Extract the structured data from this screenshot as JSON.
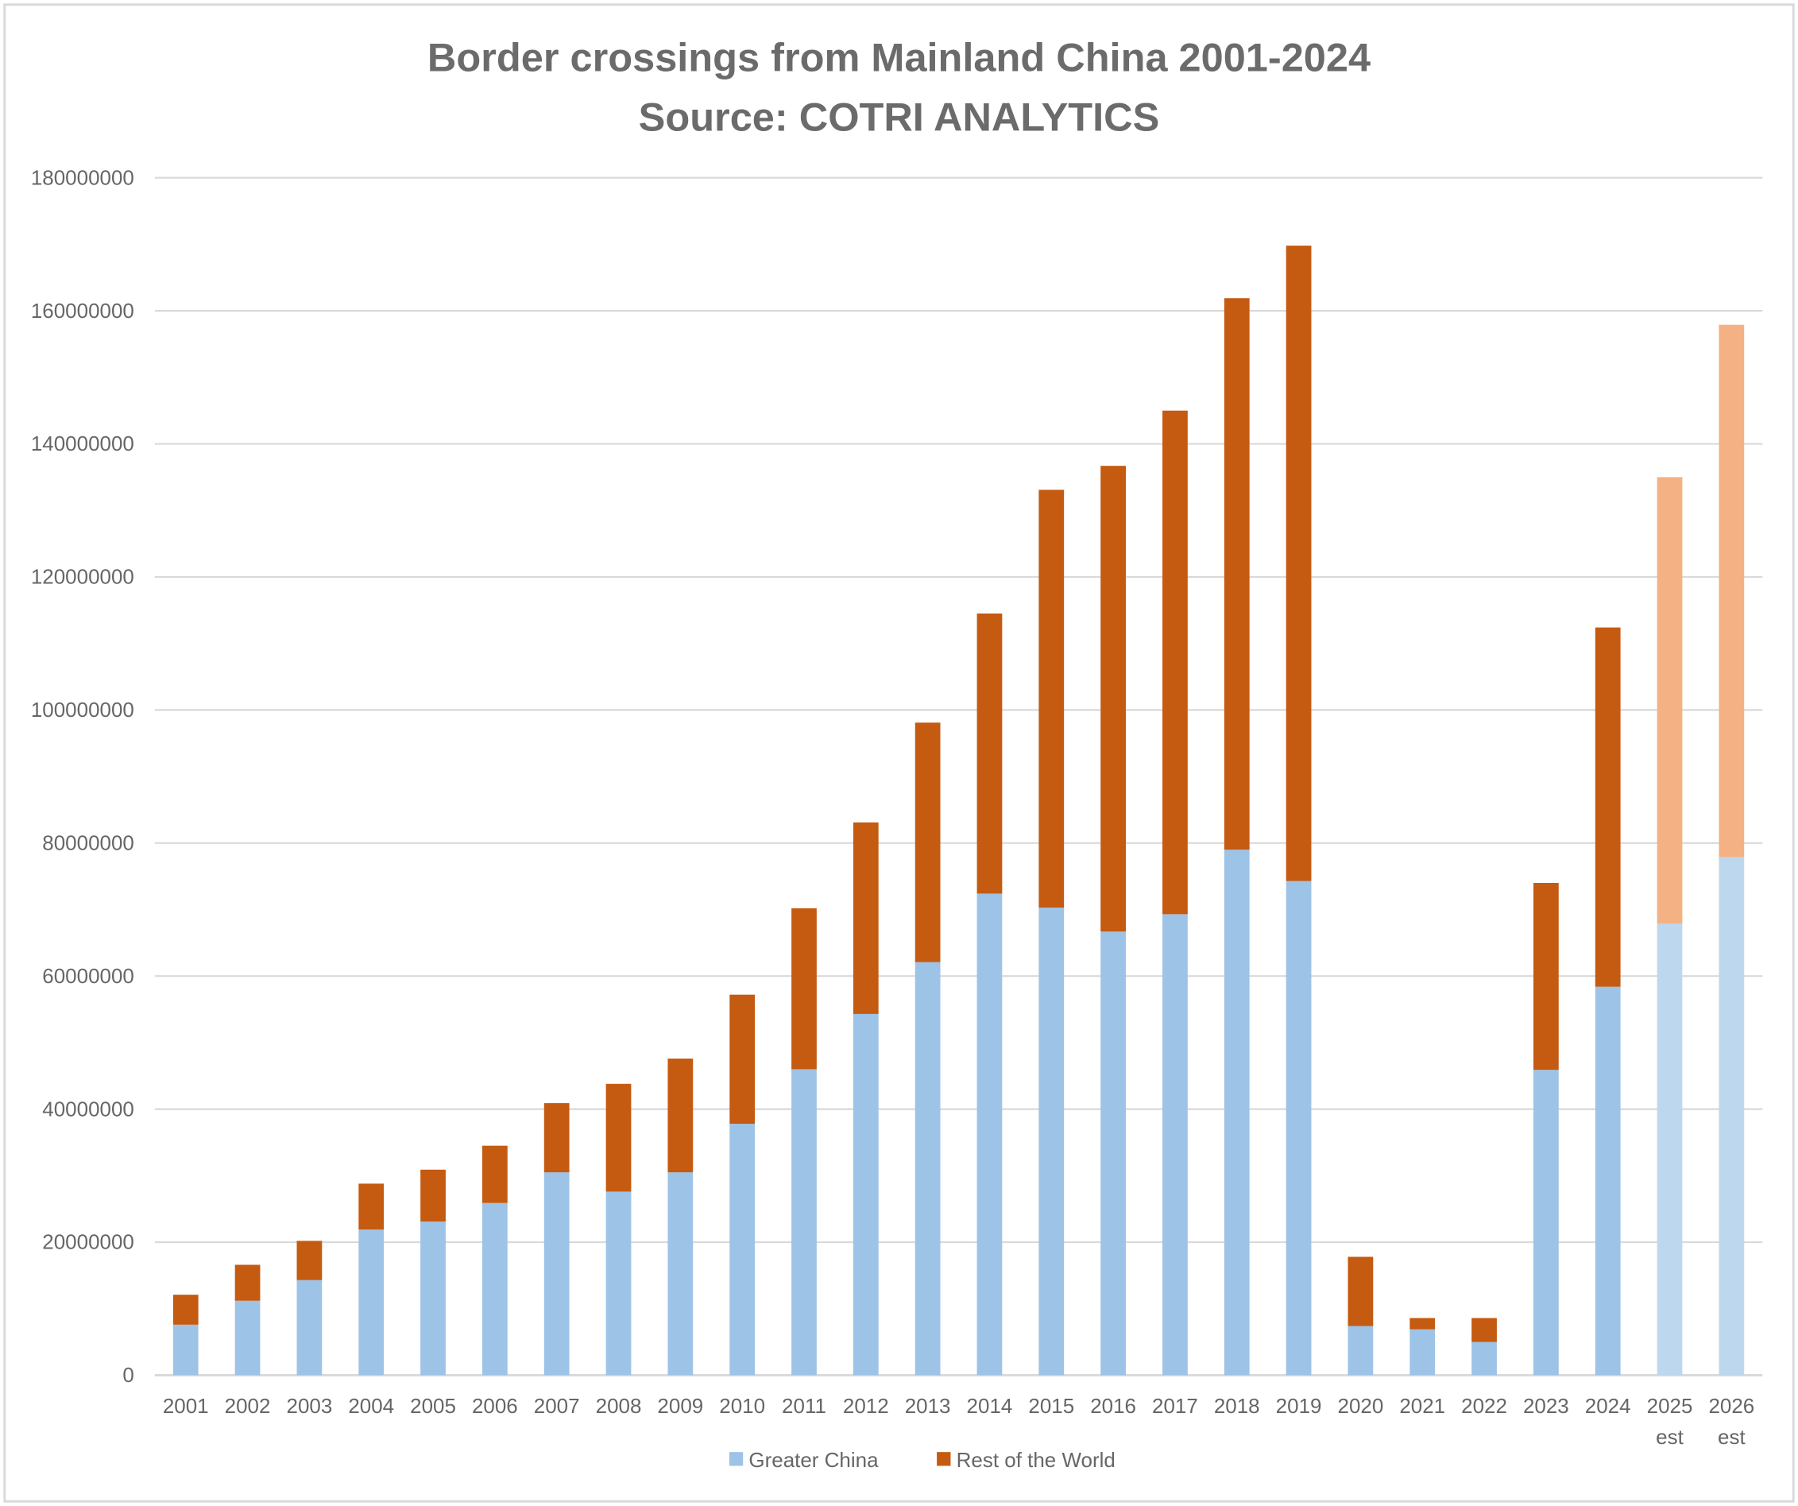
{
  "chart_data": {
    "type": "bar",
    "stacked": true,
    "title": "Border crossings from Mainland China 2001-2024",
    "subtitle": "Source: COTRI ANALYTICS",
    "xlabel": "",
    "ylabel": "",
    "ylim": [
      0,
      180000000
    ],
    "yticks": [
      "0",
      "20000000",
      "40000000",
      "60000000",
      "80000000",
      "100000000",
      "120000000",
      "140000000",
      "160000000",
      "180000000"
    ],
    "grid": true,
    "legend_position": "bottom",
    "categories": [
      [
        "2001"
      ],
      [
        "2002"
      ],
      [
        "2003"
      ],
      [
        "2004"
      ],
      [
        "2005"
      ],
      [
        "2006"
      ],
      [
        "2007"
      ],
      [
        "2008"
      ],
      [
        "2009"
      ],
      [
        "2010"
      ],
      [
        "2011"
      ],
      [
        "2012"
      ],
      [
        "2013"
      ],
      [
        "2014"
      ],
      [
        "2015"
      ],
      [
        "2016"
      ],
      [
        "2017"
      ],
      [
        "2018"
      ],
      [
        "2019"
      ],
      [
        "2020"
      ],
      [
        "2021"
      ],
      [
        "2022"
      ],
      [
        "2023"
      ],
      [
        "2024"
      ],
      [
        "2025",
        "est"
      ],
      [
        "2026",
        "est"
      ]
    ],
    "estimated": [
      false,
      false,
      false,
      false,
      false,
      false,
      false,
      false,
      false,
      false,
      false,
      false,
      false,
      false,
      false,
      false,
      false,
      false,
      false,
      false,
      false,
      false,
      false,
      false,
      true,
      true
    ],
    "series": [
      {
        "name": "Greater China",
        "color": "#9DC3E6",
        "estimate_color": "#BDD7EE",
        "values": [
          7600000,
          11200000,
          14300000,
          21900000,
          23100000,
          25900000,
          30500000,
          27600000,
          30500000,
          37800000,
          46000000,
          54300000,
          62100000,
          72400000,
          70300000,
          66700000,
          69300000,
          79000000,
          74300000,
          7400000,
          6900000,
          5000000,
          45900000,
          58400000,
          67900000,
          77900000
        ]
      },
      {
        "name": "Rest of the World",
        "color": "#C55A11",
        "estimate_color": "#F4B183",
        "values": [
          4500000,
          5400000,
          5900000,
          6900000,
          7800000,
          8600000,
          10400000,
          16200000,
          17100000,
          19400000,
          24200000,
          28800000,
          36000000,
          42100000,
          62800000,
          70000000,
          75700000,
          82900000,
          95500000,
          10400000,
          1700000,
          3600000,
          28100000,
          54000000,
          67100000,
          80000000
        ]
      }
    ]
  }
}
